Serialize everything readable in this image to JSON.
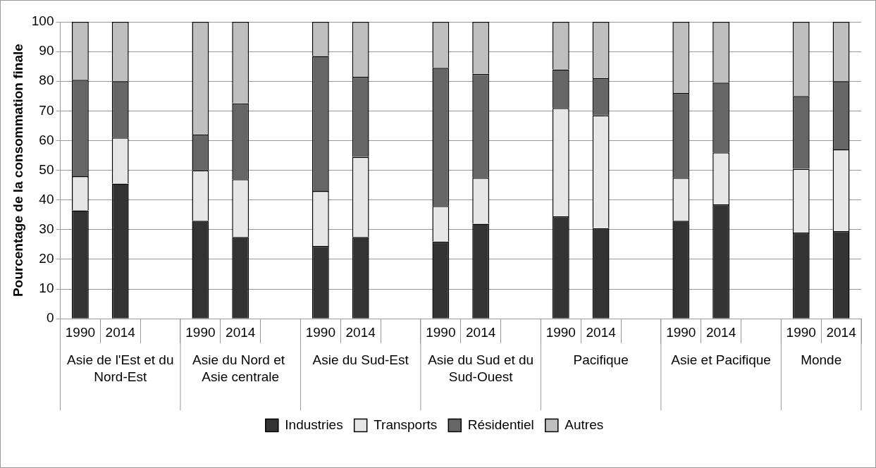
{
  "chart_data": {
    "type": "bar",
    "stacked": true,
    "ylabel": "Pourcentage de la consommation finale",
    "categories": [
      "1990",
      "2014",
      null,
      "1990",
      "2014",
      null,
      "1990",
      "2014",
      null,
      "1990",
      "2014",
      null,
      "1990",
      "2014",
      null,
      "1990",
      "2014",
      null,
      "1990",
      "2014"
    ],
    "annotations": [
      "Asie de l'Est et du Nord-Est",
      "Asie du Nord et  Asie centrale",
      "Asie du Sud-Est",
      "Asie du Sud et du Sud-Ouest",
      "Pacifique",
      "Asie et Pacifique",
      "Monde"
    ],
    "series": [
      {
        "name": "Industries",
        "color": "#333333",
        "values": [
          36.5,
          45.5,
          null,
          33,
          27.5,
          null,
          24.5,
          27.5,
          null,
          26,
          32,
          null,
          34.5,
          30.5,
          null,
          33,
          38.5,
          null,
          29,
          29.5
        ]
      },
      {
        "name": "Transports",
        "color": "#e6e6e6",
        "values": [
          11.5,
          15.5,
          null,
          17,
          19.5,
          null,
          18.5,
          27,
          null,
          12,
          15.5,
          null,
          36.5,
          38,
          null,
          14.5,
          17.5,
          null,
          21.5,
          27.5
        ]
      },
      {
        "name": "Résidentiel",
        "color": "#666666",
        "values": [
          32.5,
          19,
          null,
          12,
          25.5,
          null,
          45.5,
          27,
          null,
          46.5,
          35,
          null,
          13,
          12.5,
          null,
          28.5,
          23.5,
          null,
          24.5,
          23
        ]
      },
      {
        "name": "Autres",
        "color": "#bfbfbf",
        "values": [
          19.5,
          20,
          null,
          38,
          27.5,
          null,
          11.5,
          18.5,
          null,
          15.5,
          17.5,
          null,
          16,
          19,
          null,
          24,
          20.5,
          null,
          25,
          20
        ]
      }
    ],
    "ylim": [
      0,
      100
    ],
    "yticks": [
      0,
      10,
      20,
      30,
      40,
      50,
      60,
      70,
      80,
      90,
      100
    ],
    "grid": "y",
    "legend": "bottom"
  }
}
